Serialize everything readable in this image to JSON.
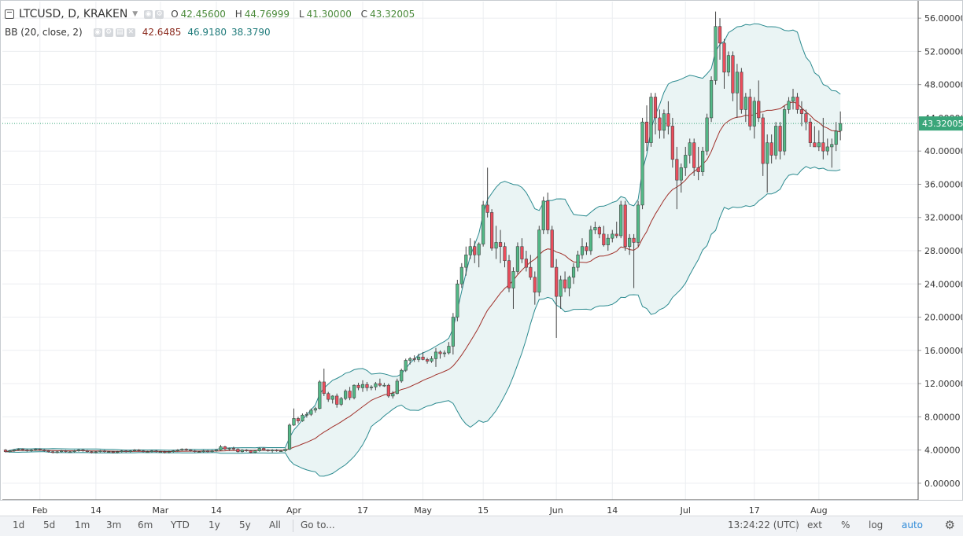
{
  "header": {
    "symbol": "LTCUSD, D, KRAKEN",
    "open_label": "O",
    "open": "42.45600",
    "high_label": "H",
    "high": "44.76999",
    "low_label": "L",
    "low": "41.30000",
    "close_label": "C",
    "close": "43.32005"
  },
  "indicator": {
    "name": "BB (20, close, 2)",
    "basis": "42.6485",
    "upper": "46.9180",
    "lower": "38.3790"
  },
  "colors": {
    "up": "#53b987",
    "down": "#eb4d5c",
    "basis": "#a0302a",
    "band": "#2a8a8f",
    "band_fill": "#eaf4f4",
    "price_line": "#3aa67a"
  },
  "chart_data": {
    "type": "candlestick",
    "title": "LTCUSD, D, KRAKEN",
    "ylim": [
      -2,
      58
    ],
    "y_ticks": [
      "0.00000",
      "4.00000",
      "8.00000",
      "12.00000",
      "16.00000",
      "20.00000",
      "24.00000",
      "28.00000",
      "32.00000",
      "36.00000",
      "40.00000",
      "44.00000",
      "48.00000",
      "52.00000",
      "56.00000"
    ],
    "x_labels": [
      {
        "label": "Feb",
        "idx": 8
      },
      {
        "label": "14",
        "idx": 21
      },
      {
        "label": "Mar",
        "idx": 36
      },
      {
        "label": "14",
        "idx": 49
      },
      {
        "label": "Apr",
        "idx": 67
      },
      {
        "label": "17",
        "idx": 83
      },
      {
        "label": "May",
        "idx": 97
      },
      {
        "label": "15",
        "idx": 111
      },
      {
        "label": "Jun",
        "idx": 128
      },
      {
        "label": "14",
        "idx": 141
      },
      {
        "label": "Jul",
        "idx": 158
      },
      {
        "label": "17",
        "idx": 174
      },
      {
        "label": "Aug",
        "idx": 189
      }
    ],
    "last_price": 43.32005,
    "last_price_label": "43.32005",
    "candles_ohlc": [
      [
        4.0,
        4.1,
        3.7,
        3.8
      ],
      [
        3.8,
        4.0,
        3.7,
        3.9
      ],
      [
        3.9,
        4.1,
        3.8,
        4.0
      ],
      [
        4.0,
        4.2,
        3.9,
        4.1
      ],
      [
        4.1,
        4.2,
        3.9,
        4.0
      ],
      [
        4.0,
        4.1,
        3.8,
        3.9
      ],
      [
        3.9,
        4.1,
        3.8,
        4.0
      ],
      [
        4.0,
        4.2,
        3.9,
        4.1
      ],
      [
        4.1,
        4.2,
        3.9,
        4.0
      ],
      [
        4.0,
        4.1,
        3.8,
        3.9
      ],
      [
        3.9,
        4.0,
        3.7,
        3.8
      ],
      [
        3.8,
        3.9,
        3.6,
        3.7
      ],
      [
        3.7,
        3.9,
        3.6,
        3.8
      ],
      [
        3.8,
        4.0,
        3.7,
        3.9
      ],
      [
        3.9,
        4.0,
        3.7,
        3.8
      ],
      [
        3.8,
        3.9,
        3.7,
        3.8
      ],
      [
        3.8,
        4.0,
        3.7,
        3.9
      ],
      [
        3.9,
        4.1,
        3.8,
        4.0
      ],
      [
        4.0,
        4.1,
        3.8,
        3.9
      ],
      [
        3.9,
        4.0,
        3.7,
        3.8
      ],
      [
        3.8,
        3.9,
        3.6,
        3.7
      ],
      [
        3.7,
        3.9,
        3.6,
        3.8
      ],
      [
        3.8,
        4.0,
        3.7,
        3.9
      ],
      [
        3.9,
        4.0,
        3.7,
        3.8
      ],
      [
        3.8,
        3.9,
        3.7,
        3.8
      ],
      [
        3.8,
        3.9,
        3.6,
        3.7
      ],
      [
        3.7,
        3.9,
        3.6,
        3.8
      ],
      [
        3.8,
        4.0,
        3.7,
        3.9
      ],
      [
        3.9,
        4.0,
        3.7,
        3.8
      ],
      [
        3.8,
        4.0,
        3.7,
        3.9
      ],
      [
        3.9,
        4.1,
        3.8,
        4.0
      ],
      [
        4.0,
        4.1,
        3.8,
        3.9
      ],
      [
        3.9,
        4.0,
        3.7,
        3.8
      ],
      [
        3.8,
        3.9,
        3.7,
        3.8
      ],
      [
        3.8,
        4.0,
        3.7,
        3.9
      ],
      [
        3.9,
        4.0,
        3.7,
        3.8
      ],
      [
        3.8,
        3.9,
        3.7,
        3.8
      ],
      [
        3.8,
        3.9,
        3.6,
        3.7
      ],
      [
        3.7,
        3.9,
        3.6,
        3.8
      ],
      [
        3.8,
        4.0,
        3.7,
        3.9
      ],
      [
        3.9,
        4.1,
        3.8,
        4.0
      ],
      [
        4.0,
        4.2,
        3.9,
        4.1
      ],
      [
        4.1,
        4.2,
        3.9,
        4.0
      ],
      [
        4.0,
        4.1,
        3.8,
        3.9
      ],
      [
        3.9,
        4.0,
        3.7,
        3.8
      ],
      [
        3.8,
        3.9,
        3.7,
        3.8
      ],
      [
        3.8,
        4.0,
        3.7,
        3.9
      ],
      [
        3.9,
        4.0,
        3.7,
        3.8
      ],
      [
        3.8,
        4.0,
        3.7,
        3.9
      ],
      [
        3.9,
        4.1,
        3.8,
        4.0
      ],
      [
        4.0,
        4.6,
        3.9,
        4.4
      ],
      [
        4.4,
        4.5,
        4.0,
        4.1
      ],
      [
        4.1,
        4.3,
        3.9,
        4.2
      ],
      [
        4.2,
        4.4,
        4.0,
        4.1
      ],
      [
        4.1,
        4.2,
        3.7,
        3.8
      ],
      [
        3.8,
        4.1,
        3.7,
        4.0
      ],
      [
        4.0,
        4.1,
        3.8,
        3.9
      ],
      [
        3.9,
        4.0,
        3.6,
        3.7
      ],
      [
        3.7,
        4.0,
        3.6,
        3.9
      ],
      [
        3.9,
        4.3,
        3.8,
        4.2
      ],
      [
        4.2,
        4.3,
        3.9,
        4.0
      ],
      [
        4.0,
        4.1,
        3.8,
        3.9
      ],
      [
        3.9,
        4.1,
        3.7,
        4.0
      ],
      [
        4.0,
        4.1,
        3.8,
        3.9
      ],
      [
        3.9,
        4.0,
        3.8,
        3.9
      ],
      [
        3.9,
        4.2,
        3.8,
        4.1
      ],
      [
        4.1,
        7.2,
        4.0,
        7.0
      ],
      [
        7.0,
        9.0,
        6.9,
        7.8
      ],
      [
        7.8,
        8.0,
        7.2,
        7.5
      ],
      [
        7.5,
        8.4,
        7.4,
        8.2
      ],
      [
        8.2,
        8.6,
        7.9,
        8.3
      ],
      [
        8.3,
        9.0,
        8.1,
        8.8
      ],
      [
        8.8,
        9.2,
        8.5,
        9.0
      ],
      [
        9.0,
        12.4,
        8.9,
        12.2
      ],
      [
        12.2,
        13.8,
        10.5,
        10.8
      ],
      [
        10.8,
        11.0,
        9.8,
        10.1
      ],
      [
        10.1,
        10.6,
        9.6,
        10.5
      ],
      [
        10.5,
        10.8,
        9.1,
        9.5
      ],
      [
        9.5,
        10.4,
        9.3,
        10.2
      ],
      [
        10.2,
        11.3,
        10.0,
        11.1
      ],
      [
        11.1,
        11.6,
        10.0,
        10.3
      ],
      [
        10.3,
        11.9,
        10.1,
        11.8
      ],
      [
        11.8,
        12.1,
        11.2,
        11.5
      ],
      [
        11.5,
        12.4,
        11.0,
        11.9
      ],
      [
        11.9,
        12.2,
        11.1,
        11.5
      ],
      [
        11.5,
        11.8,
        11.2,
        11.6
      ],
      [
        11.6,
        12.2,
        11.2,
        12.0
      ],
      [
        12.0,
        12.6,
        11.6,
        11.8
      ],
      [
        11.8,
        12.1,
        11.6,
        11.8
      ],
      [
        11.8,
        12.0,
        10.3,
        10.5
      ],
      [
        10.5,
        11.1,
        10.2,
        10.8
      ],
      [
        10.8,
        12.6,
        10.7,
        12.3
      ],
      [
        12.3,
        13.8,
        12.1,
        13.6
      ],
      [
        13.6,
        15.0,
        13.4,
        14.8
      ],
      [
        14.8,
        15.2,
        14.3,
        15.0
      ],
      [
        15.0,
        15.4,
        14.6,
        14.9
      ],
      [
        14.9,
        15.6,
        14.6,
        15.2
      ],
      [
        15.2,
        15.8,
        14.8,
        14.9
      ],
      [
        14.9,
        15.1,
        14.4,
        14.7
      ],
      [
        14.7,
        15.3,
        14.5,
        15.0
      ],
      [
        15.0,
        16.3,
        14.0,
        15.8
      ],
      [
        15.8,
        16.0,
        15.0,
        15.6
      ],
      [
        15.6,
        16.0,
        15.2,
        15.7
      ],
      [
        15.7,
        17.0,
        15.5,
        16.5
      ],
      [
        16.5,
        20.5,
        15.5,
        20.0
      ],
      [
        20.0,
        24.5,
        19.5,
        24.0
      ],
      [
        24.0,
        26.5,
        23.5,
        26.0
      ],
      [
        26.0,
        28.5,
        25.0,
        27.5
      ],
      [
        27.5,
        29.5,
        27.0,
        28.5
      ],
      [
        28.5,
        29.2,
        26.5,
        27.5
      ],
      [
        27.5,
        29.0,
        26.0,
        28.8
      ],
      [
        28.8,
        34.0,
        28.5,
        33.5
      ],
      [
        33.5,
        38.0,
        32.0,
        32.6
      ],
      [
        32.6,
        33.0,
        28.0,
        28.3
      ],
      [
        28.3,
        31.0,
        27.0,
        29.0
      ],
      [
        29.0,
        30.5,
        26.5,
        28.5
      ],
      [
        28.5,
        29.0,
        26.0,
        26.8
      ],
      [
        26.8,
        27.5,
        23.0,
        23.5
      ],
      [
        23.5,
        26.0,
        21.0,
        25.5
      ],
      [
        25.5,
        29.0,
        25.2,
        28.5
      ],
      [
        28.5,
        29.5,
        26.5,
        27.0
      ],
      [
        27.0,
        28.0,
        25.5,
        26.0
      ],
      [
        26.0,
        27.5,
        24.5,
        24.8
      ],
      [
        24.8,
        25.5,
        21.5,
        23.0
      ],
      [
        23.0,
        31.0,
        22.5,
        30.5
      ],
      [
        30.5,
        34.5,
        30.0,
        34.0
      ],
      [
        34.0,
        35.0,
        30.0,
        30.5
      ],
      [
        30.5,
        31.0,
        27.5,
        26.0
      ],
      [
        26.0,
        27.0,
        17.5,
        22.5
      ],
      [
        22.5,
        25.0,
        21.0,
        24.5
      ],
      [
        24.5,
        25.5,
        23.0,
        23.5
      ],
      [
        23.5,
        25.0,
        22.5,
        24.8
      ],
      [
        24.8,
        26.5,
        24.0,
        26.0
      ],
      [
        26.0,
        28.0,
        25.5,
        27.5
      ],
      [
        27.5,
        29.5,
        27.0,
        28.5
      ],
      [
        28.5,
        29.0,
        27.5,
        28.0
      ],
      [
        28.0,
        31.0,
        27.5,
        30.5
      ],
      [
        30.5,
        31.5,
        30.0,
        30.8
      ],
      [
        30.8,
        31.0,
        29.5,
        30.0
      ],
      [
        30.0,
        31.0,
        28.5,
        28.7
      ],
      [
        28.7,
        30.0,
        28.0,
        29.5
      ],
      [
        29.5,
        30.5,
        29.0,
        30.0
      ],
      [
        30.0,
        31.5,
        29.5,
        29.8
      ],
      [
        29.8,
        34.0,
        29.5,
        33.5
      ],
      [
        33.5,
        34.0,
        28.0,
        28.5
      ],
      [
        28.5,
        30.0,
        27.5,
        29.5
      ],
      [
        29.5,
        30.0,
        23.5,
        29.0
      ],
      [
        29.0,
        34.0,
        28.5,
        33.5
      ],
      [
        33.5,
        44.0,
        33.0,
        43.5
      ],
      [
        43.5,
        45.5,
        40.0,
        41.0
      ],
      [
        41.0,
        47.0,
        40.5,
        46.5
      ],
      [
        46.5,
        47.0,
        42.0,
        44.0
      ],
      [
        44.0,
        45.0,
        41.5,
        42.5
      ],
      [
        42.5,
        45.0,
        41.5,
        44.5
      ],
      [
        44.5,
        46.0,
        42.0,
        43.0
      ],
      [
        43.0,
        44.0,
        38.0,
        39.0
      ],
      [
        39.0,
        40.5,
        33.0,
        36.5
      ],
      [
        36.5,
        38.5,
        35.0,
        38.0
      ],
      [
        38.0,
        40.5,
        37.0,
        39.5
      ],
      [
        39.5,
        41.5,
        38.5,
        41.0
      ],
      [
        41.0,
        41.5,
        37.0,
        38.0
      ],
      [
        38.0,
        40.5,
        36.5,
        37.5
      ],
      [
        37.5,
        40.5,
        37.0,
        40.0
      ],
      [
        40.0,
        44.5,
        39.5,
        44.0
      ],
      [
        44.0,
        49.0,
        43.5,
        48.5
      ],
      [
        48.5,
        56.8,
        48.0,
        55.0
      ],
      [
        55.0,
        56.0,
        51.0,
        53.0
      ],
      [
        53.0,
        53.5,
        47.5,
        49.5
      ],
      [
        49.5,
        52.0,
        49.0,
        51.5
      ],
      [
        51.5,
        52.0,
        46.0,
        47.0
      ],
      [
        47.0,
        50.5,
        44.0,
        49.5
      ],
      [
        49.5,
        50.0,
        44.5,
        45.0
      ],
      [
        45.0,
        47.0,
        43.5,
        46.5
      ],
      [
        46.5,
        47.5,
        42.5,
        43.0
      ],
      [
        43.0,
        46.5,
        41.5,
        46.0
      ],
      [
        46.0,
        48.5,
        43.5,
        44.0
      ],
      [
        44.0,
        44.5,
        37.0,
        38.5
      ],
      [
        38.5,
        42.0,
        35.0,
        41.0
      ],
      [
        41.0,
        42.0,
        38.5,
        39.5
      ],
      [
        39.5,
        43.5,
        39.0,
        43.0
      ],
      [
        43.0,
        43.5,
        39.0,
        40.0
      ],
      [
        40.0,
        45.5,
        39.5,
        45.0
      ],
      [
        45.0,
        46.5,
        44.5,
        46.0
      ],
      [
        46.0,
        47.5,
        45.0,
        46.5
      ],
      [
        46.5,
        47.0,
        44.5,
        45.0
      ],
      [
        45.0,
        46.0,
        43.0,
        44.5
      ],
      [
        44.5,
        45.0,
        42.5,
        43.5
      ],
      [
        43.5,
        44.0,
        40.5,
        41.0
      ],
      [
        41.0,
        43.0,
        40.5,
        40.5
      ],
      [
        40.5,
        42.5,
        40.0,
        41.0
      ],
      [
        41.0,
        44.0,
        39.0,
        40.0
      ],
      [
        40.0,
        41.5,
        39.5,
        40.5
      ],
      [
        40.5,
        41.5,
        38.0,
        40.8
      ],
      [
        40.8,
        43.5,
        40.0,
        42.4
      ],
      [
        42.456,
        44.76999,
        41.3,
        43.32005
      ]
    ]
  },
  "toolbar": {
    "ranges": [
      "1d",
      "5d",
      "1m",
      "3m",
      "6m",
      "YTD",
      "1y",
      "5y",
      "All"
    ],
    "goto": "Go to...",
    "time": "13:24:22 (UTC)",
    "ext": "ext",
    "percent": "%",
    "log": "log",
    "auto": "auto"
  }
}
